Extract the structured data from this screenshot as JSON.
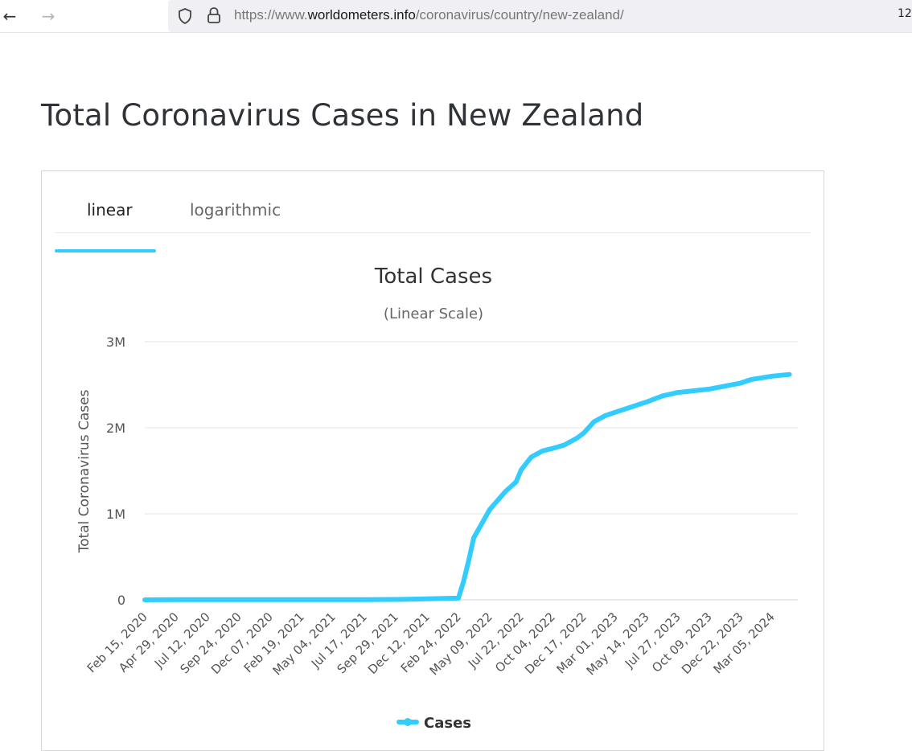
{
  "browser": {
    "url_prefix": "https://www.",
    "url_domain": "worldometers.info",
    "url_path": "/coronavirus/country/new-zealand/",
    "zoom": "12"
  },
  "page": {
    "title": "Total Coronavirus Cases in New Zealand"
  },
  "tabs": [
    {
      "label": "linear",
      "active": true
    },
    {
      "label": "logarithmic",
      "active": false
    }
  ],
  "colors": {
    "series": "#33ccff",
    "grid": "#e6e6e6"
  },
  "chart_data": {
    "type": "line",
    "title": "Total Cases",
    "subtitle": "(Linear Scale)",
    "ylabel": "Total Coronavirus Cases",
    "xlabel": "",
    "ylim": [
      0,
      3000000
    ],
    "y_ticks": [
      {
        "value": 0,
        "label": "0"
      },
      {
        "value": 1000000,
        "label": "1M"
      },
      {
        "value": 2000000,
        "label": "2M"
      },
      {
        "value": 3000000,
        "label": "3M"
      }
    ],
    "x_ticks": [
      "Feb 15, 2020",
      "Apr 29, 2020",
      "Jul 12, 2020",
      "Sep 24, 2020",
      "Dec 07, 2020",
      "Feb 19, 2021",
      "May 04, 2021",
      "Jul 17, 2021",
      "Sep 29, 2021",
      "Dec 12, 2021",
      "Feb 24, 2022",
      "May 09, 2022",
      "Jul 22, 2022",
      "Oct 04, 2022",
      "Dec 17, 2022",
      "Mar 01, 2023",
      "May 14, 2023",
      "Jul 27, 2023",
      "Oct 09, 2023",
      "Dec 22, 2023",
      "Mar 05, 2024"
    ],
    "legend": "bottom",
    "series": [
      {
        "name": "Cases",
        "x": [
          "Feb 15, 2020",
          "Apr 29, 2020",
          "Jul 12, 2020",
          "Sep 24, 2020",
          "Dec 07, 2020",
          "Feb 19, 2021",
          "May 04, 2021",
          "Jul 17, 2021",
          "Sep 29, 2021",
          "Dec 12, 2021",
          "Jan 20, 2022",
          "Feb 24, 2022",
          "Mar 08, 2022",
          "Mar 20, 2022",
          "Apr 01, 2022",
          "May 09, 2022",
          "Jun 15, 2022",
          "Jul 10, 2022",
          "Jul 22, 2022",
          "Aug 15, 2022",
          "Sep 10, 2022",
          "Oct 04, 2022",
          "Nov 01, 2022",
          "Dec 01, 2022",
          "Dec 17, 2022",
          "Jan 10, 2023",
          "Feb 05, 2023",
          "Mar 01, 2023",
          "Apr 01, 2023",
          "May 14, 2023",
          "Jun 20, 2023",
          "Jul 27, 2023",
          "Oct 09, 2023",
          "Dec 22, 2023",
          "Jan 15, 2024",
          "Mar 05, 2024",
          "Apr 15, 2024"
        ],
        "values": [
          0,
          1500,
          1600,
          1800,
          2100,
          2300,
          2600,
          2900,
          4300,
          11000,
          15500,
          20000,
          210000,
          450000,
          720000,
          1050000,
          1260000,
          1370000,
          1510000,
          1660000,
          1730000,
          1760000,
          1800000,
          1880000,
          1940000,
          2070000,
          2140000,
          2180000,
          2230000,
          2300000,
          2370000,
          2410000,
          2450000,
          2520000,
          2560000,
          2600000,
          2620000
        ]
      }
    ]
  }
}
